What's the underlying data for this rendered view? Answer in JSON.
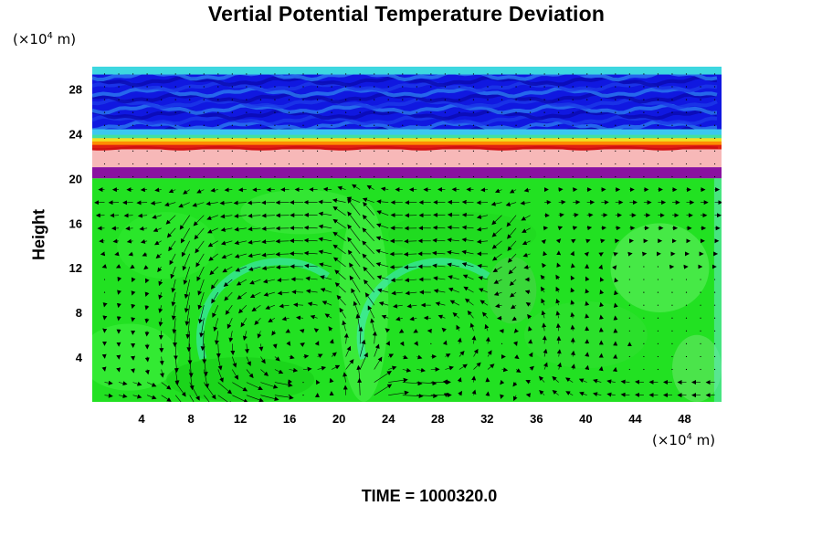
{
  "chart_data": {
    "type": "heatmap",
    "title": "Vertial Potential Temperature Deviation",
    "ylabel": "Height",
    "xlabel": "",
    "x_unit": "(×10",
    "x_unit_exp": "4",
    "x_unit_tail": " m)",
    "y_unit": "(×10",
    "y_unit_exp": "4",
    "y_unit_tail": " m)",
    "xlim": [
      0,
      51
    ],
    "ylim": [
      0,
      30
    ],
    "x_ticks": [
      4,
      8,
      12,
      16,
      20,
      24,
      28,
      32,
      36,
      40,
      44,
      48
    ],
    "y_ticks": [
      4,
      8,
      12,
      16,
      20,
      24,
      28
    ],
    "grid": false,
    "layers": [
      {
        "name": "upper layer",
        "y_range": [
          24,
          30
        ],
        "dominant_color": "#1018e0"
      },
      {
        "name": "warm band",
        "y_range": [
          22.6,
          23.6
        ],
        "dominant_color": "#e02010"
      },
      {
        "name": "pink band",
        "y_range": [
          21,
          22.6
        ],
        "dominant_color": "#f7b8b8"
      },
      {
        "name": "purple band",
        "y_range": [
          20,
          21
        ],
        "dominant_color": "#8a12a0"
      },
      {
        "name": "lower layer",
        "y_range": [
          0,
          20
        ],
        "dominant_color": "#22e122"
      }
    ],
    "circulation_cells": [
      {
        "center_x": 15.5,
        "center_y": 5.5
      },
      {
        "center_x": 28.5,
        "center_y": 5.5
      }
    ],
    "vector_field": true
  },
  "footer": {
    "time_text": "TIME = 1000320.0"
  }
}
